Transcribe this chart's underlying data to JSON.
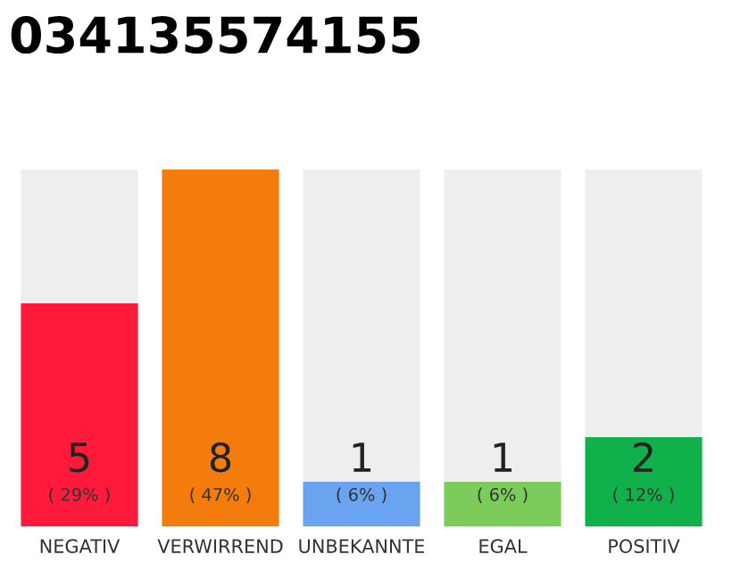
{
  "chart_data": {
    "type": "bar",
    "title": "034135574155",
    "categories": [
      "NEGATIV",
      "VERWIRREND",
      "UNBEKANNTE",
      "EGAL",
      "POSITIV"
    ],
    "stacked": true,
    "series": [
      {
        "color": null,
        "colors": [
          "#ff1a3c",
          "#f47c0c",
          "#6aa3ef",
          "#7ccc5c",
          "#10b14a"
        ],
        "values": [
          5,
          8,
          1,
          1,
          2
        ],
        "value_labels": [
          "5",
          "8",
          "1",
          "1",
          "2"
        ]
      },
      {
        "color": "#eeeeee",
        "values": [
          3,
          0,
          7,
          7,
          6
        ]
      }
    ],
    "annotations": [
      "( 29% )",
      "( 47% )",
      "( 6% )",
      "( 6% )",
      "( 12% )"
    ],
    "grid": false,
    "legend": false
  }
}
